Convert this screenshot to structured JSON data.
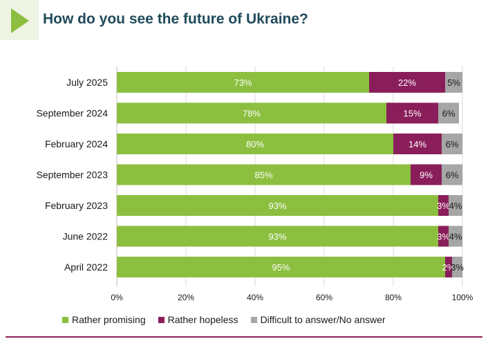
{
  "title": "How do you see the future of Ukraine?",
  "colors": {
    "promising": "#8cbf3f",
    "hopeless": "#8a1e5a",
    "difficult": "#a6a6a6",
    "title": "#1f4a5a",
    "accent_arrow": "#8cbf3f"
  },
  "chart_data": {
    "type": "bar",
    "orientation": "horizontal",
    "stacked": true,
    "categories": [
      "July 2025",
      "September 2024",
      "February 2024",
      "September 2023",
      "February 2023",
      "June 2022",
      "April 2022"
    ],
    "series": [
      {
        "name": "Rather promising",
        "color": "#8cbf3f",
        "values": [
          73,
          78,
          80,
          85,
          93,
          93,
          95
        ]
      },
      {
        "name": "Rather hopeless",
        "color": "#8a1e5a",
        "values": [
          22,
          15,
          14,
          9,
          3,
          3,
          2
        ]
      },
      {
        "name": "Difficult to answer/No answer",
        "color": "#a6a6a6",
        "values": [
          5,
          6,
          6,
          6,
          4,
          4,
          3
        ]
      }
    ],
    "xlim": [
      0,
      100
    ],
    "x_ticks": [
      "0%",
      "20%",
      "40%",
      "60%",
      "80%",
      "100%"
    ],
    "value_suffix": "%",
    "grid": true,
    "legend_position": "bottom"
  }
}
